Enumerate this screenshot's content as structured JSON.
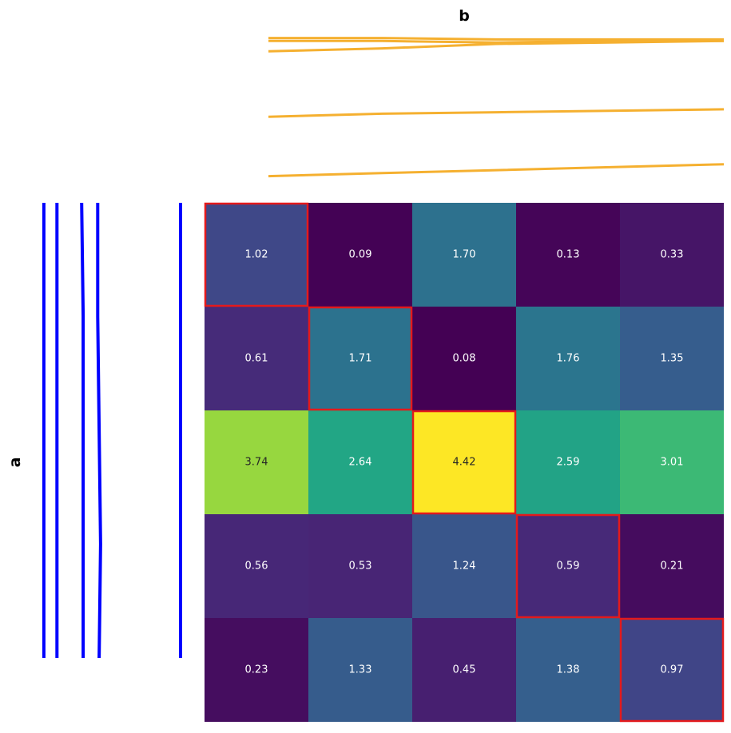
{
  "chart_data": {
    "type": "heatmap",
    "xlabel": "b",
    "ylabel": "a",
    "matrix": [
      [
        1.02,
        0.09,
        1.7,
        0.13,
        0.33
      ],
      [
        0.61,
        1.71,
        0.08,
        1.76,
        1.35
      ],
      [
        3.74,
        2.64,
        4.42,
        2.59,
        3.01
      ],
      [
        0.56,
        0.53,
        1.24,
        0.59,
        0.21
      ],
      [
        0.23,
        1.33,
        0.45,
        1.38,
        0.97
      ]
    ],
    "value_format": "0.00",
    "colormap": "viridis",
    "highlighted_cells": [
      [
        0,
        0
      ],
      [
        1,
        1
      ],
      [
        2,
        2
      ],
      [
        3,
        3
      ],
      [
        4,
        4
      ]
    ],
    "top_dendrogram": {
      "color": "#f5b030",
      "orientation": "top",
      "segments": [
        [
          [
            0,
            0.04
          ],
          [
            1,
            0.06
          ],
          [
            2,
            0.08
          ],
          [
            3,
            0.1
          ],
          [
            4,
            0.12
          ]
        ],
        [
          [
            0,
            0.44
          ],
          [
            1,
            0.46
          ],
          [
            2,
            0.47
          ],
          [
            3,
            0.48
          ],
          [
            4,
            0.49
          ]
        ],
        [
          [
            0,
            0.88
          ],
          [
            1,
            0.9
          ],
          [
            2,
            0.93
          ],
          [
            3,
            0.94
          ],
          [
            4,
            0.95
          ]
        ],
        [
          [
            0,
            0.95
          ],
          [
            1,
            0.95
          ],
          [
            2,
            0.94
          ],
          [
            3,
            0.95
          ],
          [
            4,
            0.95
          ]
        ],
        [
          [
            0,
            0.97
          ],
          [
            1,
            0.97
          ],
          [
            2,
            0.96
          ],
          [
            3,
            0.96
          ],
          [
            4,
            0.96
          ]
        ]
      ]
    },
    "left_dendrogram": {
      "color": "#0000ff",
      "orientation": "left",
      "segments": [
        [
          [
            0,
            0.06
          ],
          [
            1,
            0.06
          ],
          [
            2,
            0.06
          ],
          [
            3,
            0.06
          ],
          [
            4,
            0.06
          ]
        ],
        [
          [
            0,
            0.15
          ],
          [
            1,
            0.15
          ],
          [
            2,
            0.15
          ],
          [
            3,
            0.15
          ],
          [
            4,
            0.15
          ]
        ],
        [
          [
            0,
            0.32
          ],
          [
            1,
            0.33
          ],
          [
            2,
            0.33
          ],
          [
            3,
            0.33
          ],
          [
            4,
            0.33
          ]
        ],
        [
          [
            0,
            0.43
          ],
          [
            1,
            0.43
          ],
          [
            2,
            0.44
          ],
          [
            3,
            0.45
          ],
          [
            4,
            0.44
          ]
        ],
        [
          [
            0,
            1.0
          ],
          [
            1,
            1.0
          ],
          [
            2,
            1.0
          ],
          [
            3,
            1.0
          ],
          [
            4,
            1.0
          ]
        ]
      ]
    }
  }
}
